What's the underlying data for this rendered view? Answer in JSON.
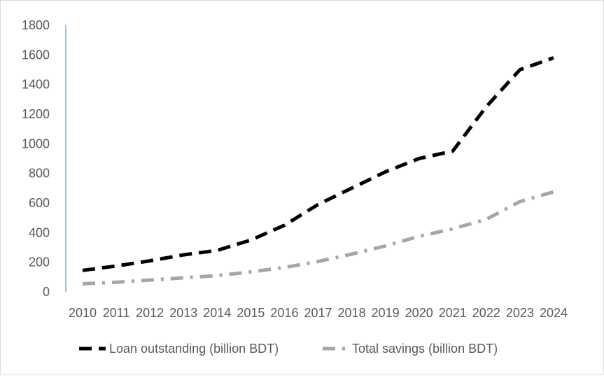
{
  "chart_data": {
    "type": "line",
    "title": "",
    "xlabel": "",
    "ylabel": "",
    "ylim": [
      0,
      1800
    ],
    "y_ticks": [
      0,
      200,
      400,
      600,
      800,
      1000,
      1200,
      1400,
      1600,
      1800
    ],
    "grid": false,
    "legend_position": "bottom",
    "categories": [
      "2010",
      "2011",
      "2012",
      "2013",
      "2014",
      "2015",
      "2016",
      "2017",
      "2018",
      "2019",
      "2020",
      "2021",
      "2022",
      "2023",
      "2024"
    ],
    "series": [
      {
        "name": "Loan outstanding (billion BDT)",
        "color": "#000000",
        "line_style": "dash",
        "values": [
          145,
          175,
          210,
          250,
          280,
          350,
          450,
          590,
          700,
          810,
          900,
          950,
          1250,
          1500,
          1580
        ]
      },
      {
        "name": "Total savings (billion BDT)",
        "color": "#a6a6a6",
        "line_style": "dash-dot",
        "values": [
          55,
          65,
          80,
          95,
          110,
          135,
          165,
          205,
          255,
          310,
          375,
          425,
          490,
          610,
          675
        ]
      }
    ]
  }
}
